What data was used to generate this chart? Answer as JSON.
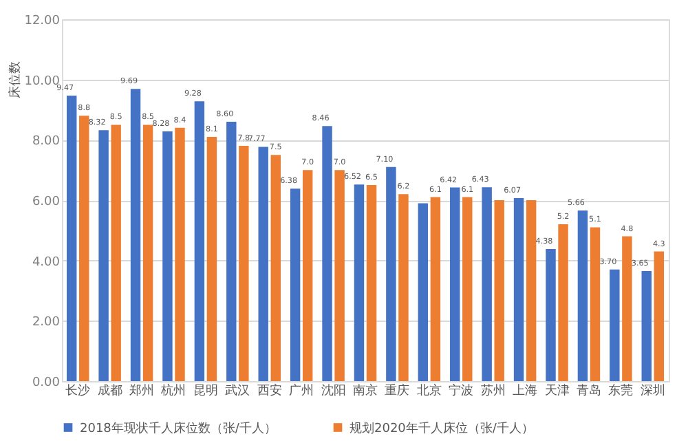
{
  "chart_data": {
    "type": "bar",
    "ylabel": "床位数",
    "categories": [
      "长沙",
      "成都",
      "郑州",
      "杭州",
      "昆明",
      "武汉",
      "西安",
      "广州",
      "沈阳",
      "南京",
      "重庆",
      "北京",
      "宁波",
      "苏州",
      "上海",
      "天津",
      "青岛",
      "东莞",
      "深圳"
    ],
    "series": [
      {
        "name": "2018年现状千人床位数（张/千人）",
        "color": "#4472c4",
        "values": [
          9.47,
          8.32,
          9.69,
          8.28,
          9.28,
          8.6,
          7.77,
          6.38,
          8.46,
          6.52,
          7.1,
          5.9,
          6.42,
          6.43,
          6.07,
          4.38,
          5.66,
          3.7,
          3.65
        ],
        "value_labels": [
          "9.47",
          "8.32",
          "9.69",
          "8.28",
          "9.28",
          "8.60",
          "7.77",
          "6.38",
          "8.46",
          "6.52",
          "7.10",
          null,
          "6.42",
          "6.43",
          "6.07",
          "4.38",
          "5.66",
          "3.70",
          "3.65"
        ]
      },
      {
        "name": "规划2020年千人床位（张/千人）",
        "color": "#ed7d31",
        "values": [
          8.8,
          8.5,
          8.5,
          8.4,
          8.1,
          7.8,
          7.5,
          7.0,
          7.0,
          6.5,
          6.2,
          6.1,
          6.1,
          6.0,
          6.0,
          5.2,
          5.1,
          4.8,
          4.3
        ],
        "value_labels": [
          "8.8",
          "8.5",
          "8.5",
          "8.4",
          "8.1",
          "7.8",
          "7.5",
          "7.0",
          "7.0",
          "6.5",
          "6.2",
          "6.1",
          "6.1",
          null,
          null,
          "5.2",
          "5.1",
          "4.8",
          "4.3"
        ]
      }
    ],
    "ylim": [
      0,
      12
    ],
    "yticks": [
      {
        "value": 0,
        "label": "0.00"
      },
      {
        "value": 2,
        "label": "2.00"
      },
      {
        "value": 4,
        "label": "4.00"
      },
      {
        "value": 6,
        "label": "6.00"
      },
      {
        "value": 8,
        "label": "8.00"
      },
      {
        "value": 10,
        "label": "10.00"
      },
      {
        "value": 12,
        "label": "12.00"
      }
    ],
    "grid": "y",
    "legend": "bottom"
  }
}
